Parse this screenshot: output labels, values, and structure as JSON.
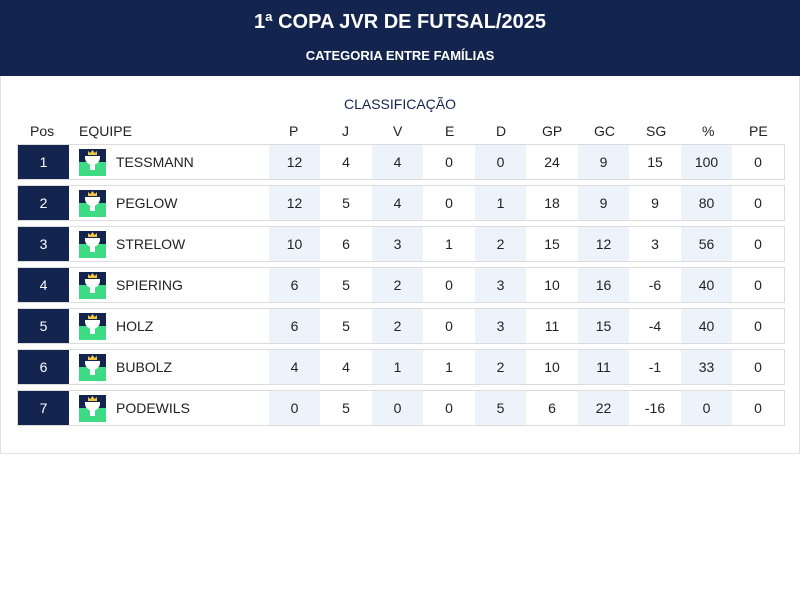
{
  "header": {
    "title": "1ª COPA JVR DE FUTSAL/2025",
    "subtitle": "CATEGORIA ENTRE FAMÍLIAS"
  },
  "standings": {
    "section_title": "CLASSIFICAÇÃO",
    "columns": [
      "Pos",
      "EQUIPE",
      "P",
      "J",
      "V",
      "E",
      "D",
      "GP",
      "GC",
      "SG",
      "%",
      "PE"
    ],
    "rows": [
      {
        "pos": "1",
        "team": "TESSMANN",
        "p": "12",
        "j": "4",
        "v": "4",
        "e": "0",
        "d": "0",
        "gp": "24",
        "gc": "9",
        "sg": "15",
        "pct": "100",
        "pe": "0"
      },
      {
        "pos": "2",
        "team": "PEGLOW",
        "p": "12",
        "j": "5",
        "v": "4",
        "e": "0",
        "d": "1",
        "gp": "18",
        "gc": "9",
        "sg": "9",
        "pct": "80",
        "pe": "0"
      },
      {
        "pos": "3",
        "team": "STRELOW",
        "p": "10",
        "j": "6",
        "v": "3",
        "e": "1",
        "d": "2",
        "gp": "15",
        "gc": "12",
        "sg": "3",
        "pct": "56",
        "pe": "0"
      },
      {
        "pos": "4",
        "team": "SPIERING",
        "p": "6",
        "j": "5",
        "v": "2",
        "e": "0",
        "d": "3",
        "gp": "10",
        "gc": "16",
        "sg": "-6",
        "pct": "40",
        "pe": "0"
      },
      {
        "pos": "5",
        "team": "HOLZ",
        "p": "6",
        "j": "5",
        "v": "2",
        "e": "0",
        "d": "3",
        "gp": "11",
        "gc": "15",
        "sg": "-4",
        "pct": "40",
        "pe": "0"
      },
      {
        "pos": "6",
        "team": "BUBOLZ",
        "p": "4",
        "j": "4",
        "v": "1",
        "e": "1",
        "d": "2",
        "gp": "10",
        "gc": "11",
        "sg": "-1",
        "pct": "33",
        "pe": "0"
      },
      {
        "pos": "7",
        "team": "PODEWILS",
        "p": "0",
        "j": "5",
        "v": "0",
        "e": "0",
        "d": "5",
        "gp": "6",
        "gc": "22",
        "sg": "-16",
        "pct": "0",
        "pe": "0"
      }
    ]
  },
  "icons": {
    "team_logo": "trophy-crown-logo-icon"
  },
  "colors": {
    "header_bg": "#13254f",
    "stripe": "#ecf3fa",
    "logo_green": "#3ddc84",
    "crown": "#f2c744"
  }
}
